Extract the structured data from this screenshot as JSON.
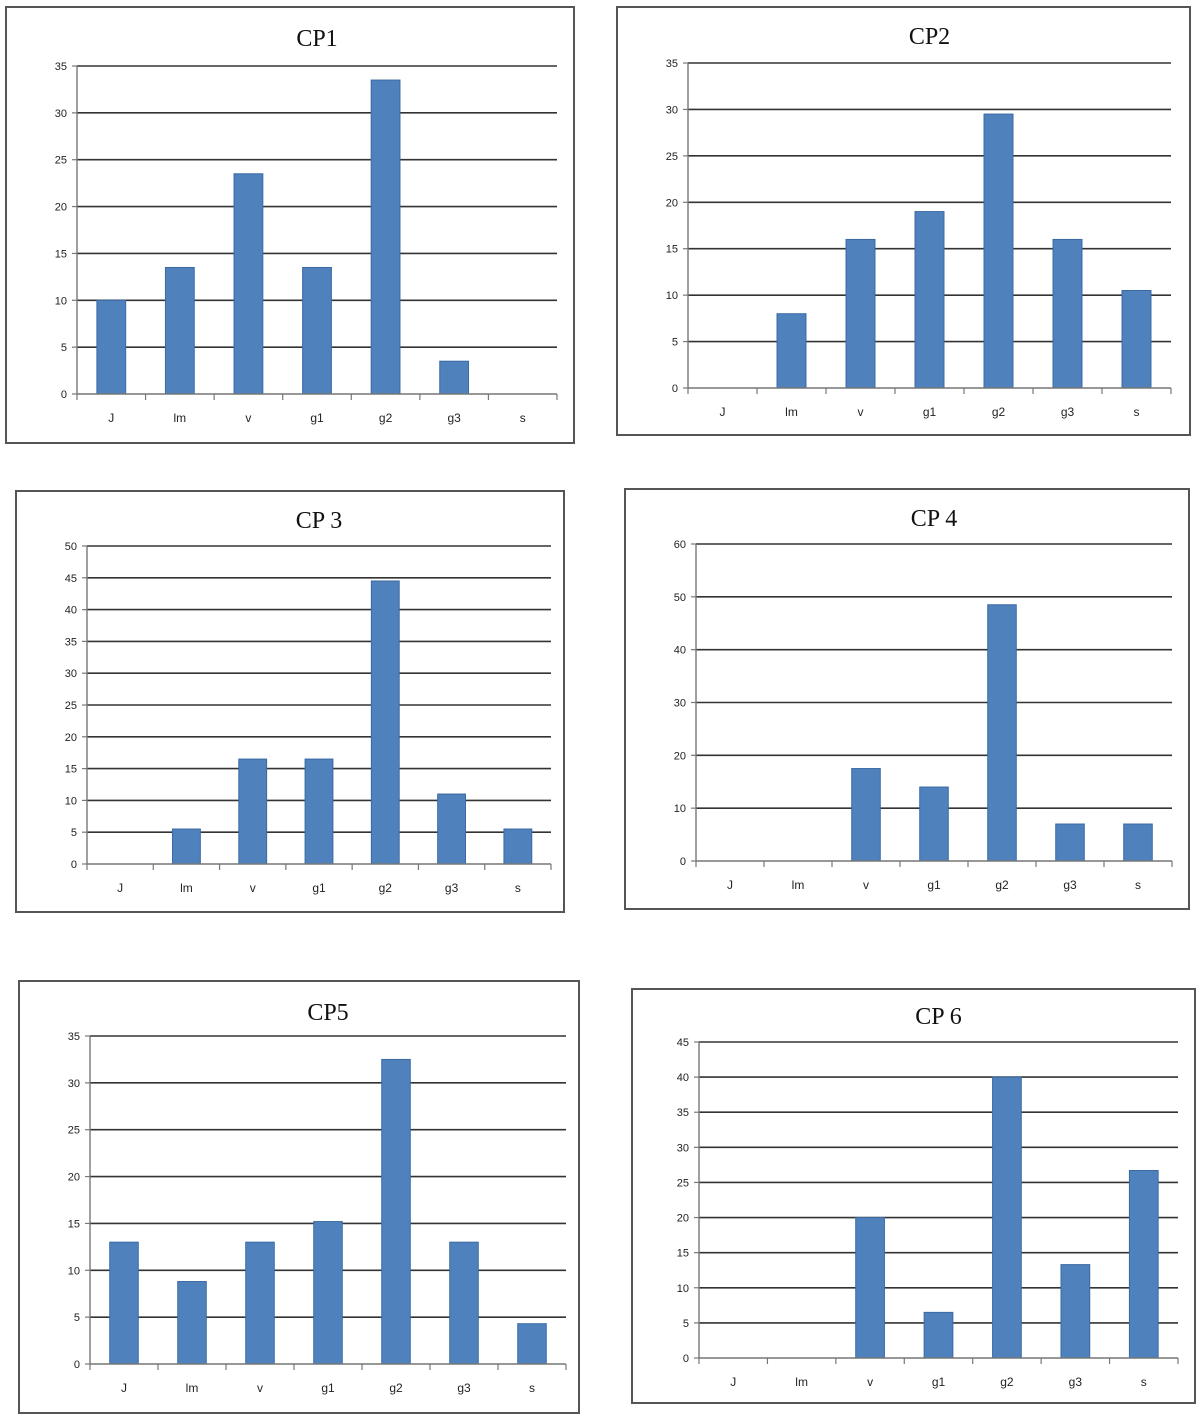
{
  "colors": {
    "bar": "#4f81bd",
    "bar_edge": "#3b6aa3",
    "grid": "#333333",
    "frame": "#555555"
  },
  "chart_data": [
    {
      "type": "bar",
      "title": "CP1",
      "categories": [
        "J",
        "lm",
        "v",
        "g1",
        "g2",
        "g3",
        "s"
      ],
      "values": [
        10,
        13.5,
        23.5,
        13.5,
        33.5,
        3.5,
        0
      ],
      "yticks": [
        "0",
        "5",
        "10",
        "15",
        "20",
        "25",
        "30",
        "35"
      ],
      "ylim": [
        0,
        35
      ],
      "grid": true,
      "legend": "none"
    },
    {
      "type": "bar",
      "title": "CP2",
      "categories": [
        "J",
        "lm",
        "v",
        "g1",
        "g2",
        "g3",
        "s"
      ],
      "values": [
        0,
        8,
        16,
        19,
        29.5,
        16,
        10.5
      ],
      "yticks": [
        "0",
        "5",
        "10",
        "15",
        "20",
        "25",
        "30",
        "35"
      ],
      "ylim": [
        0,
        35
      ],
      "grid": true,
      "legend": "none"
    },
    {
      "type": "bar",
      "title": "CP 3",
      "categories": [
        "J",
        "lm",
        "v",
        "g1",
        "g2",
        "g3",
        "s"
      ],
      "values": [
        0,
        5.5,
        16.5,
        16.5,
        44.5,
        11,
        5.5
      ],
      "yticks": [
        "0",
        "5",
        "10",
        "15",
        "20",
        "25",
        "30",
        "35",
        "40",
        "45",
        "50"
      ],
      "ylim": [
        0,
        50
      ],
      "grid": true,
      "legend": "none"
    },
    {
      "type": "bar",
      "title": "CP 4",
      "categories": [
        "J",
        "lm",
        "v",
        "g1",
        "g2",
        "g3",
        "s"
      ],
      "values": [
        0,
        0,
        17.5,
        14,
        48.5,
        7,
        7
      ],
      "yticks": [
        "0",
        "10",
        "20",
        "30",
        "40",
        "50",
        "60"
      ],
      "ylim": [
        0,
        60
      ],
      "grid": true,
      "legend": "none"
    },
    {
      "type": "bar",
      "title": "CP5",
      "categories": [
        "J",
        "lm",
        "v",
        "g1",
        "g2",
        "g3",
        "s"
      ],
      "values": [
        13,
        8.8,
        13,
        15.2,
        32.5,
        13,
        4.3
      ],
      "yticks": [
        "0",
        "5",
        "10",
        "15",
        "20",
        "25",
        "30",
        "35"
      ],
      "ylim": [
        0,
        35
      ],
      "grid": true,
      "legend": "none"
    },
    {
      "type": "bar",
      "title": "CP 6",
      "categories": [
        "J",
        "lm",
        "v",
        "g1",
        "g2",
        "g3",
        "s"
      ],
      "values": [
        0,
        0,
        20,
        6.5,
        40,
        13.3,
        26.7
      ],
      "yticks": [
        "0",
        "5",
        "10",
        "15",
        "20",
        "25",
        "30",
        "35",
        "40",
        "45"
      ],
      "ylim": [
        0,
        45
      ],
      "grid": true,
      "legend": "none"
    }
  ]
}
